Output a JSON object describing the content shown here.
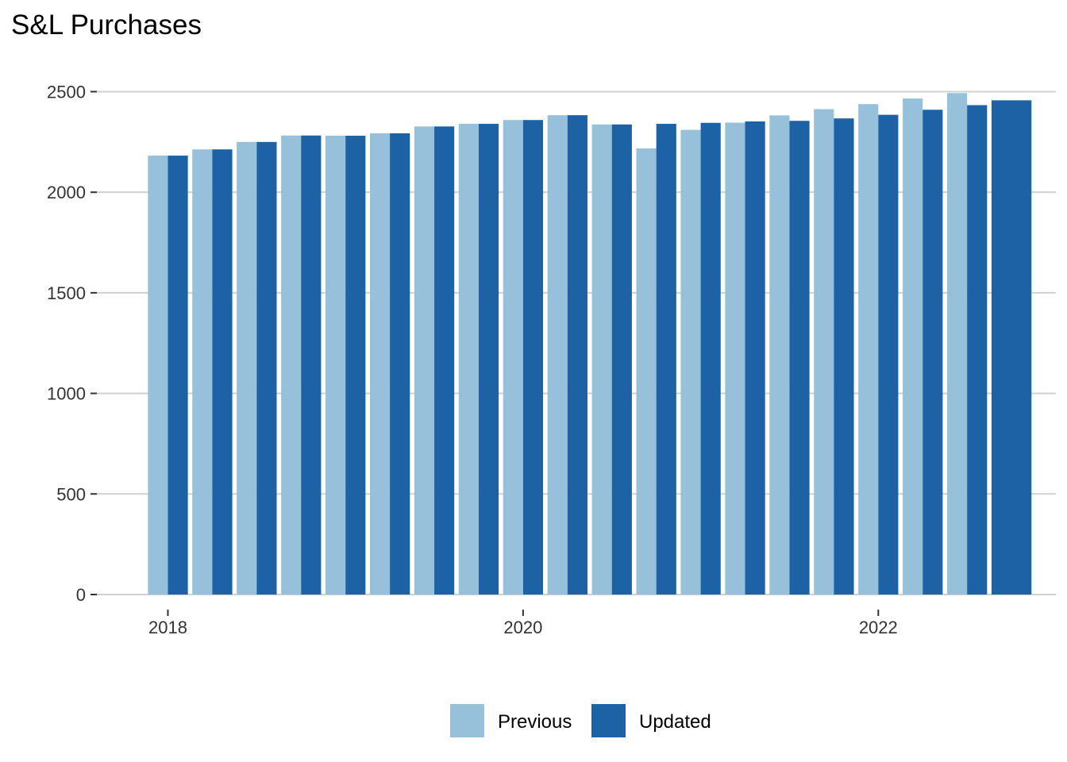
{
  "chart_data": {
    "type": "bar",
    "title": "S&L Purchases",
    "xlabel": "",
    "ylabel": "",
    "x_axis": {
      "ticks": [
        2018,
        2020,
        2022
      ],
      "range": [
        2017.6,
        2023.0
      ]
    },
    "ylim": [
      -75,
      2640
    ],
    "y_ticks": [
      0,
      500,
      1000,
      1500,
      2000,
      2500
    ],
    "grid": "horizontal",
    "legend_position": "bottom",
    "x": [
      2018.0,
      2018.25,
      2018.5,
      2018.75,
      2019.0,
      2019.25,
      2019.5,
      2019.75,
      2020.0,
      2020.25,
      2020.5,
      2020.75,
      2021.0,
      2021.25,
      2021.5,
      2021.75,
      2022.0,
      2022.25,
      2022.5,
      2022.75
    ],
    "series": [
      {
        "name": "Previous",
        "color": "#97c1da",
        "values": [
          2182,
          2213,
          2250,
          2282,
          2281,
          2293,
          2327,
          2340,
          2359,
          2383,
          2337,
          2218,
          2310,
          2346,
          2382,
          2413,
          2438,
          2466,
          2493,
          null
        ]
      },
      {
        "name": "Updated",
        "color": "#1d62a5",
        "values": [
          2182,
          2213,
          2250,
          2282,
          2281,
          2293,
          2327,
          2340,
          2359,
          2383,
          2337,
          2340,
          2345,
          2352,
          2355,
          2367,
          2385,
          2410,
          2433,
          2457
        ]
      }
    ]
  }
}
